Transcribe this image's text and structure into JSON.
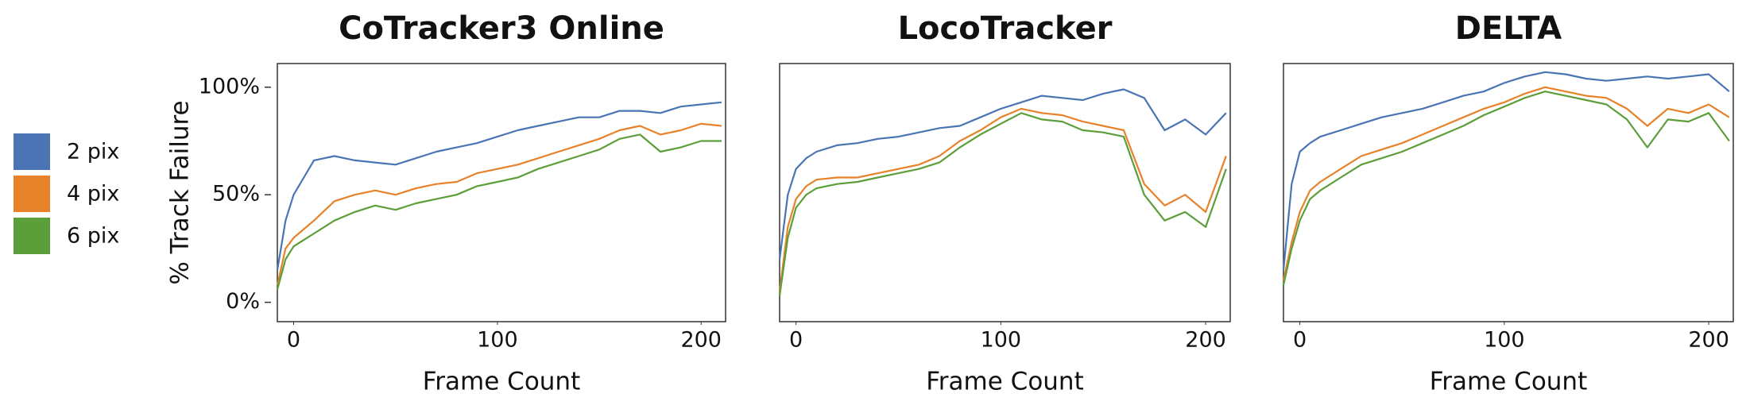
{
  "chart_data": [
    {
      "type": "line",
      "title": "CoTracker3 Online",
      "xlabel": "Frame Count",
      "ylabel": "% Track Failure",
      "x": [
        -8,
        -4,
        0,
        5,
        10,
        20,
        30,
        40,
        50,
        60,
        70,
        80,
        90,
        100,
        110,
        120,
        130,
        140,
        150,
        160,
        170,
        180,
        190,
        200,
        210
      ],
      "series": [
        {
          "name": "2 pix",
          "color": "#4a74b4",
          "values": [
            15,
            38,
            50,
            58,
            66,
            68,
            66,
            65,
            64,
            67,
            70,
            72,
            74,
            77,
            80,
            82,
            84,
            86,
            86,
            89,
            89,
            88,
            91,
            92,
            93
          ]
        },
        {
          "name": "4 pix",
          "color": "#e8822a",
          "values": [
            8,
            25,
            30,
            34,
            38,
            47,
            50,
            52,
            50,
            53,
            55,
            56,
            60,
            62,
            64,
            67,
            70,
            73,
            76,
            80,
            82,
            78,
            80,
            83,
            82
          ]
        },
        {
          "name": "6 pix",
          "color": "#5c9e3a",
          "values": [
            6,
            20,
            26,
            29,
            32,
            38,
            42,
            45,
            43,
            46,
            48,
            50,
            54,
            56,
            58,
            62,
            65,
            68,
            71,
            76,
            78,
            70,
            72,
            75,
            75
          ]
        }
      ],
      "xlim": [
        -8,
        212
      ],
      "xticks": [
        0,
        100,
        200
      ],
      "ylim": [
        -9,
        111
      ],
      "yticks": [
        {
          "value": 0,
          "label": "0%"
        },
        {
          "value": 50,
          "label": "50%"
        },
        {
          "value": 100,
          "label": "100%"
        }
      ]
    },
    {
      "type": "line",
      "title": "LocoTracker",
      "xlabel": "Frame Count",
      "x": [
        -8,
        -4,
        0,
        5,
        10,
        20,
        30,
        40,
        50,
        60,
        70,
        80,
        90,
        100,
        110,
        120,
        130,
        140,
        150,
        160,
        170,
        180,
        190,
        200,
        210
      ],
      "series": [
        {
          "name": "2 pix",
          "color": "#4a74b4",
          "values": [
            20,
            50,
            62,
            67,
            70,
            73,
            74,
            76,
            77,
            79,
            81,
            82,
            86,
            90,
            93,
            96,
            95,
            94,
            97,
            99,
            95,
            80,
            85,
            78,
            88
          ]
        },
        {
          "name": "4 pix",
          "color": "#e8822a",
          "values": [
            5,
            35,
            48,
            54,
            57,
            58,
            58,
            60,
            62,
            64,
            68,
            75,
            80,
            86,
            90,
            88,
            87,
            84,
            82,
            80,
            55,
            45,
            50,
            42,
            68
          ]
        },
        {
          "name": "6 pix",
          "color": "#5c9e3a",
          "values": [
            3,
            30,
            44,
            50,
            53,
            55,
            56,
            58,
            60,
            62,
            65,
            72,
            78,
            83,
            88,
            85,
            84,
            80,
            79,
            77,
            50,
            38,
            42,
            35,
            62
          ]
        }
      ],
      "xlim": [
        -8,
        212
      ],
      "xticks": [
        0,
        100,
        200
      ],
      "ylim": [
        -9,
        111
      ]
    },
    {
      "type": "line",
      "title": "DELTA",
      "xlabel": "Frame Count",
      "x": [
        -8,
        -4,
        0,
        5,
        10,
        20,
        30,
        40,
        50,
        60,
        70,
        80,
        90,
        100,
        110,
        120,
        130,
        140,
        150,
        160,
        170,
        180,
        190,
        200,
        210
      ],
      "series": [
        {
          "name": "2 pix",
          "color": "#4a74b4",
          "values": [
            15,
            55,
            70,
            74,
            77,
            80,
            83,
            86,
            88,
            90,
            93,
            96,
            98,
            102,
            105,
            107,
            106,
            104,
            103,
            104,
            105,
            104,
            105,
            106,
            98
          ]
        },
        {
          "name": "4 pix",
          "color": "#e8822a",
          "values": [
            10,
            28,
            42,
            52,
            56,
            62,
            68,
            71,
            74,
            78,
            82,
            86,
            90,
            93,
            97,
            100,
            98,
            96,
            95,
            90,
            82,
            90,
            88,
            92,
            86
          ]
        },
        {
          "name": "6 pix",
          "color": "#5c9e3a",
          "values": [
            8,
            25,
            38,
            48,
            52,
            58,
            64,
            67,
            70,
            74,
            78,
            82,
            87,
            91,
            95,
            98,
            96,
            94,
            92,
            85,
            72,
            85,
            84,
            88,
            75
          ]
        }
      ],
      "xlim": [
        -8,
        212
      ],
      "xticks": [
        0,
        100,
        200
      ],
      "ylim": [
        -9,
        111
      ]
    }
  ]
}
